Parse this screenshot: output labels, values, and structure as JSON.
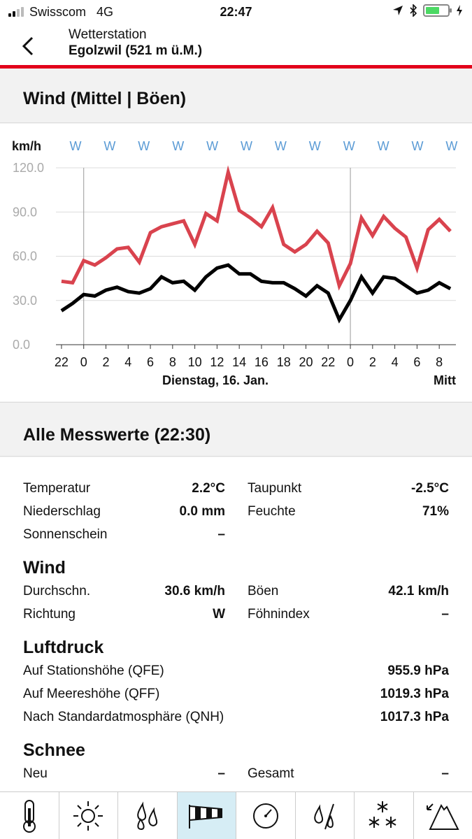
{
  "status_bar": {
    "carrier": "Swisscom",
    "network": "4G",
    "time": "22:47"
  },
  "header": {
    "subtitle": "Wetterstation",
    "title": "Egolzwil (521 m ü.M.)"
  },
  "wind_section": {
    "title": "Wind (Mittel | Böen)",
    "unit_label": "km/h",
    "direction_row": [
      "W",
      "W",
      "W",
      "W",
      "W",
      "W",
      "W",
      "W",
      "W",
      "W",
      "W",
      "W"
    ],
    "date_labels": [
      "Dienstag, 16. Jan.",
      "Mitt"
    ]
  },
  "chart_data": {
    "type": "line",
    "ylim": [
      0,
      120
    ],
    "yticks": [
      "0.0",
      "30.0",
      "60.0",
      "90.0",
      "120.0"
    ],
    "xlim": [
      "2018-01-15T21:30",
      "2018-01-17T09:30"
    ],
    "x_tick_labels": [
      "22",
      "0",
      "2",
      "4",
      "6",
      "8",
      "10",
      "12",
      "14",
      "16",
      "18",
      "20",
      "22",
      "0",
      "2",
      "4",
      "6",
      "8"
    ],
    "grid": true,
    "day_separators": [
      "2018-01-16T00:00",
      "2018-01-17T00:00"
    ],
    "x": [
      "2018-01-15T22:00",
      "2018-01-15T23:00",
      "2018-01-16T00:00",
      "2018-01-16T01:00",
      "2018-01-16T02:00",
      "2018-01-16T03:00",
      "2018-01-16T04:00",
      "2018-01-16T05:00",
      "2018-01-16T06:00",
      "2018-01-16T07:00",
      "2018-01-16T08:00",
      "2018-01-16T09:00",
      "2018-01-16T10:00",
      "2018-01-16T11:00",
      "2018-01-16T12:00",
      "2018-01-16T13:00",
      "2018-01-16T14:00",
      "2018-01-16T15:00",
      "2018-01-16T16:00",
      "2018-01-16T17:00",
      "2018-01-16T18:00",
      "2018-01-16T19:00",
      "2018-01-16T20:00",
      "2018-01-16T21:00",
      "2018-01-16T22:00",
      "2018-01-16T23:00",
      "2018-01-17T00:00",
      "2018-01-17T01:00",
      "2018-01-17T02:00",
      "2018-01-17T03:00",
      "2018-01-17T04:00",
      "2018-01-17T05:00",
      "2018-01-17T06:00",
      "2018-01-17T07:00",
      "2018-01-17T08:00",
      "2018-01-17T09:00"
    ],
    "series": [
      {
        "color": "#d9434e",
        "values": [
          43,
          42,
          57,
          54,
          59,
          65,
          66,
          56,
          76,
          80,
          82,
          84,
          68,
          89,
          84,
          117,
          91,
          86,
          80,
          93,
          68,
          63,
          68,
          77,
          69,
          40,
          55,
          86,
          74,
          87,
          79,
          73,
          52,
          78,
          85,
          77
        ]
      },
      {
        "color": "#000000",
        "values": [
          23,
          28,
          34,
          33,
          37,
          39,
          36,
          35,
          38,
          46,
          42,
          43,
          37,
          46,
          52,
          54,
          48,
          48,
          43,
          42,
          42,
          38,
          33,
          40,
          35,
          17,
          30,
          46,
          35,
          46,
          45,
          40,
          35,
          37,
          42,
          38
        ]
      }
    ]
  },
  "measurements": {
    "title": "Alle Messwerte (22:30)",
    "general": [
      {
        "label": "Temperatur",
        "value": "2.2°C"
      },
      {
        "label": "Taupunkt",
        "value": "-2.5°C"
      },
      {
        "label": "Niederschlag",
        "value": "0.0 mm"
      },
      {
        "label": "Feuchte",
        "value": "71%"
      },
      {
        "label": "Sonnenschein",
        "value": "–"
      }
    ],
    "wind": {
      "title": "Wind",
      "items": [
        {
          "label": "Durchschn.",
          "value": "30.6 km/h"
        },
        {
          "label": "Böen",
          "value": "42.1 km/h"
        },
        {
          "label": "Richtung",
          "value": "W"
        },
        {
          "label": "Föhnindex",
          "value": "–"
        }
      ]
    },
    "pressure": {
      "title": "Luftdruck",
      "items": [
        {
          "label": "Auf Stationshöhe (QFE)",
          "value": "955.9 hPa"
        },
        {
          "label": "Auf Meereshöhe (QFF)",
          "value": "1019.3 hPa"
        },
        {
          "label": "Nach Standardatmosphäre (QNH)",
          "value": "1017.3 hPa"
        }
      ]
    },
    "snow": {
      "title": "Schnee",
      "items": [
        {
          "label": "Neu",
          "value": "–"
        },
        {
          "label": "Gesamt",
          "value": "–"
        }
      ]
    }
  },
  "tabbar": {
    "tabs": [
      {
        "icon": "thermometer-icon"
      },
      {
        "icon": "sun-icon"
      },
      {
        "icon": "raindrops-icon"
      },
      {
        "icon": "windsock-icon",
        "active": true
      },
      {
        "icon": "pressure-gauge-icon"
      },
      {
        "icon": "humidity-icon"
      },
      {
        "icon": "snowflakes-icon"
      },
      {
        "icon": "mountain-icon"
      }
    ]
  },
  "colors": {
    "accent_red": "#e2001a",
    "gust_line": "#d9434e",
    "mean_line": "#000000",
    "direction_text": "#5b9bd5",
    "active_tab": "#d6edf5"
  }
}
